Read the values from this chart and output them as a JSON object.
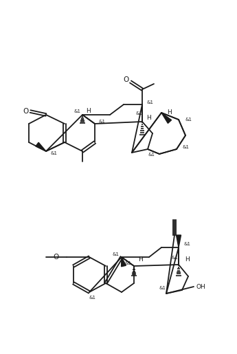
{
  "figsize": [
    3.41,
    5.11
  ],
  "dpi": 100,
  "bg_color": "#ffffff",
  "line_color": "#1a1a1a",
  "line_width": 1.3,
  "font_size": 6.5
}
